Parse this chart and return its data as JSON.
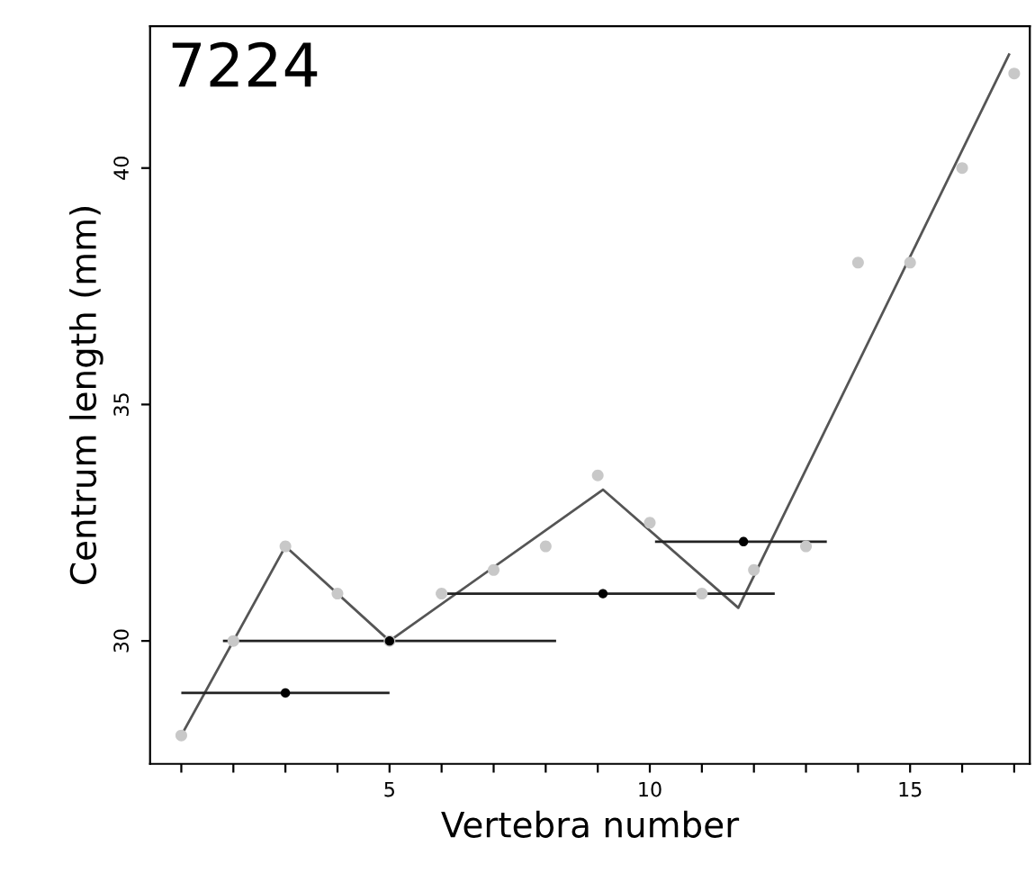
{
  "chart_data": {
    "type": "scatter",
    "xlabel": "Vertebra number",
    "ylabel": "Centrum length (mm)",
    "annotations": [
      "7224"
    ],
    "xlim": [
      0.4,
      17.3
    ],
    "ylim": [
      27.4,
      43.0
    ],
    "xticks": [
      {
        "value": 1,
        "label": null
      },
      {
        "value": 2,
        "label": null
      },
      {
        "value": 3,
        "label": null
      },
      {
        "value": 4,
        "label": null
      },
      5,
      {
        "value": 6,
        "label": null
      },
      {
        "value": 7,
        "label": null
      },
      {
        "value": 8,
        "label": null
      },
      {
        "value": 9,
        "label": null
      },
      10,
      {
        "value": 11,
        "label": null
      },
      {
        "value": 12,
        "label": null
      },
      {
        "value": 13,
        "label": null
      },
      {
        "value": 14,
        "label": null
      },
      15,
      {
        "value": 16,
        "label": null
      },
      {
        "value": 17,
        "label": null
      }
    ],
    "yticks": [
      30,
      35,
      40
    ],
    "grid": false,
    "legend": false,
    "series": [
      {
        "color": "#c8c8c8",
        "marker": "circle",
        "x": [
          1,
          2,
          3,
          4,
          5,
          6,
          7,
          8,
          9,
          10,
          11,
          12,
          13,
          14,
          15,
          16,
          17
        ],
        "values": [
          28,
          30,
          32,
          31,
          30,
          31,
          31.5,
          32,
          33.5,
          32.5,
          31,
          31.5,
          32,
          38,
          38,
          40,
          42
        ]
      },
      {
        "type": "line",
        "color": "#555555",
        "marker": "none",
        "line_style": "solid",
        "x": [
          1,
          3,
          5,
          9.1,
          11.7,
          16.9
        ],
        "values": [
          28,
          32,
          30,
          33.2,
          30.7,
          42.4
        ]
      },
      {
        "color": "#000000",
        "marker": "circle",
        "x": [
          3,
          5,
          9.1,
          11.8
        ],
        "values": [
          28.9,
          30,
          31,
          32.1
        ],
        "xerrors": [
          [
            1,
            5
          ],
          [
            1.8,
            8.2
          ],
          [
            5.9,
            12.4
          ],
          [
            10.1,
            13.4
          ]
        ]
      }
    ]
  }
}
